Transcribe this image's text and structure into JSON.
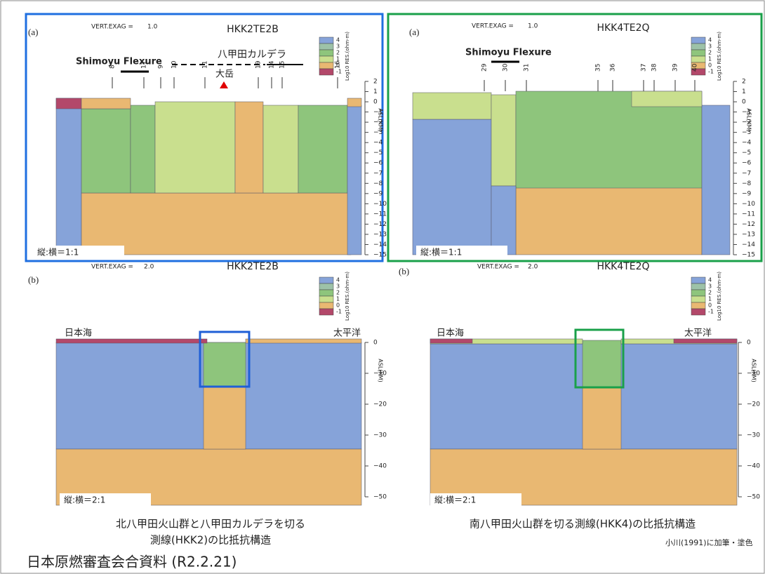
{
  "panels": [
    {
      "label": "(a)",
      "vert_exag_label": "VERT.EXAG =",
      "vert_exag": "1.0",
      "title": "HKK2TE2B",
      "annotations": [
        "Shimoyu Flexure",
        "八甲田カルデラ",
        "大岳"
      ],
      "stations": [
        "8",
        "17",
        "9",
        "10",
        "11",
        "19",
        "14",
        "15",
        "16"
      ],
      "legend_title": "Log10 RES.(ohm-m)",
      "legend_levels": [
        "4",
        "3",
        "2",
        "1",
        "0",
        "-1"
      ],
      "axis_label": "ASL(KM)",
      "axis_ticks": [
        "2",
        "1",
        "0",
        "−1",
        "−2",
        "−3",
        "−4",
        "−5",
        "−6",
        "−7",
        "−8",
        "−9",
        "−10",
        "−11",
        "−12",
        "−13",
        "−14",
        "−15"
      ],
      "scale_note": "縦:横＝1:1"
    },
    {
      "label": "(a)",
      "vert_exag_label": "VERT.EXAG =",
      "vert_exag": "1.0",
      "title": "HKK4TE2Q",
      "annotations": [
        "Shimoyu Flexure"
      ],
      "stations": [
        "29",
        "30",
        "31",
        "35",
        "36",
        "37",
        "38",
        "39",
        "40"
      ],
      "legend_title": "Log10 RES.(ohm-m)",
      "legend_levels": [
        "4",
        "3",
        "2",
        "1",
        "0",
        "-1"
      ],
      "axis_label": "ASL(KM)",
      "axis_ticks": [
        "2",
        "1",
        "0",
        "−1",
        "−2",
        "−3",
        "−4",
        "−5",
        "−6",
        "−7",
        "−8",
        "−9",
        "−10",
        "−11",
        "−12",
        "−13",
        "−14",
        "−15"
      ],
      "scale_note": "縦:横＝1:1"
    },
    {
      "label": "(b)",
      "vert_exag_label": "VERT.EXAG =",
      "vert_exag": "2.0",
      "title": "HKK2TE2B",
      "annotations": [
        "日本海",
        "太平洋"
      ],
      "legend_title": "Log10 RES.(ohm-m)",
      "legend_levels": [
        "4",
        "3",
        "2",
        "1",
        "0",
        "-1"
      ],
      "axis_label": "ASL(KM)",
      "axis_ticks": [
        "0",
        "−10",
        "−20",
        "−30",
        "−40",
        "−50"
      ],
      "scale_note": "縦:横＝2:1"
    },
    {
      "label": "(b)",
      "vert_exag_label": "VERT.EXAG =",
      "vert_exag": "2.0",
      "title": "HKK4TE2Q",
      "annotations": [
        "日本海",
        "太平洋"
      ],
      "legend_title": "Log10 RES.(ohm-m)",
      "legend_levels": [
        "4",
        "3",
        "2",
        "1",
        "0",
        "-1"
      ],
      "axis_label": "ASL(KM)",
      "axis_ticks": [
        "0",
        "−10",
        "−20",
        "−30",
        "−40",
        "−50"
      ],
      "scale_note": "縦:横＝2:1"
    }
  ],
  "captions": [
    [
      "北八甲田火山群と八甲田カルデラを切る",
      "測線(HKK2)の比抵抗構造"
    ],
    [
      "南八甲田火山群を切る測線(HKK4)の比抵抗構造"
    ]
  ],
  "source": "小川(1991)に加筆・塗色",
  "footer": "日本原燃審査会合資料 (R2.2.21)"
}
